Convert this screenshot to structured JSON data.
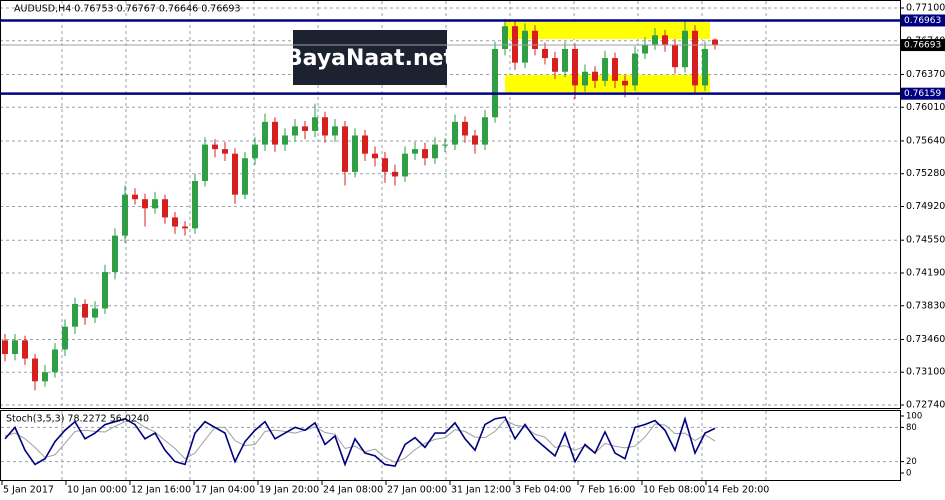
{
  "chart_data": {
    "type": "candlestick",
    "title": "AUDUSD,H4  0.76753 0.76767 0.76646 0.76693",
    "watermark": "BayaNaat.net",
    "up_color": "#2f9e44",
    "down_color": "#d62020",
    "open": [
      0.7345,
      0.733,
      0.7345,
      0.7325,
      0.73,
      0.731,
      0.7335,
      0.736,
      0.7385,
      0.737,
      0.738,
      0.742,
      0.746,
      0.7505,
      0.75,
      0.749,
      0.75,
      0.748,
      0.747,
      0.7468,
      0.752,
      0.756,
      0.7555,
      0.755,
      0.7505,
      0.7545,
      0.756,
      0.7585,
      0.756,
      0.757,
      0.758,
      0.7575,
      0.759,
      0.757,
      0.758,
      0.753,
      0.757,
      0.755,
      0.7545,
      0.753,
      0.7525,
      0.755,
      0.7555,
      0.7545,
      0.756,
      0.756,
      0.7585,
      0.757,
      0.756,
      0.759,
      0.7665,
      0.769,
      0.765,
      0.7685,
      0.7665,
      0.7655,
      0.764,
      0.7665,
      0.7625,
      0.764,
      0.763,
      0.7655,
      0.763,
      0.7625,
      0.766,
      0.767,
      0.768,
      0.767,
      0.7645,
      0.7685,
      0.7625,
      0.76753
    ],
    "high": [
      0.7352,
      0.7352,
      0.735,
      0.733,
      0.7318,
      0.7342,
      0.7368,
      0.7392,
      0.739,
      0.7388,
      0.7428,
      0.7468,
      0.7515,
      0.7512,
      0.7506,
      0.7508,
      0.7505,
      0.7486,
      0.7476,
      0.7528,
      0.7568,
      0.7566,
      0.7563,
      0.7556,
      0.7552,
      0.7568,
      0.7594,
      0.759,
      0.7578,
      0.7588,
      0.7586,
      0.7605,
      0.7596,
      0.7588,
      0.7586,
      0.7578,
      0.7576,
      0.7558,
      0.7552,
      0.7538,
      0.7558,
      0.7563,
      0.7562,
      0.7568,
      0.7567,
      0.7593,
      0.7591,
      0.7576,
      0.7598,
      0.7673,
      0.7698,
      0.7696,
      0.7693,
      0.7691,
      0.7672,
      0.7662,
      0.7673,
      0.7671,
      0.7648,
      0.7646,
      0.7663,
      0.7661,
      0.7636,
      0.7668,
      0.7678,
      0.7688,
      0.7686,
      0.7676,
      0.7696,
      0.7691,
      0.7673,
      0.76767
    ],
    "low": [
      0.7322,
      0.7323,
      0.7318,
      0.729,
      0.7294,
      0.7304,
      0.7328,
      0.7352,
      0.7362,
      0.7364,
      0.7374,
      0.7412,
      0.7452,
      0.7494,
      0.747,
      0.7484,
      0.7473,
      0.7462,
      0.746,
      0.7462,
      0.7514,
      0.7546,
      0.7542,
      0.7495,
      0.75,
      0.7538,
      0.7553,
      0.7552,
      0.7553,
      0.7563,
      0.7566,
      0.7568,
      0.7562,
      0.7563,
      0.7515,
      0.7524,
      0.7542,
      0.7536,
      0.7518,
      0.7515,
      0.7519,
      0.7543,
      0.7537,
      0.7539,
      0.7552,
      0.7554,
      0.7562,
      0.755,
      0.7554,
      0.7584,
      0.7658,
      0.7642,
      0.7644,
      0.7658,
      0.7648,
      0.7632,
      0.7634,
      0.761,
      0.7618,
      0.7622,
      0.7624,
      0.7622,
      0.7612,
      0.7619,
      0.7654,
      0.7664,
      0.7662,
      0.7638,
      0.7639,
      0.7615,
      0.7619,
      0.76646
    ],
    "close": [
      0.733,
      0.7345,
      0.7325,
      0.73,
      0.731,
      0.7335,
      0.736,
      0.7385,
      0.737,
      0.738,
      0.742,
      0.746,
      0.7505,
      0.75,
      0.749,
      0.75,
      0.748,
      0.747,
      0.7468,
      0.752,
      0.756,
      0.7555,
      0.755,
      0.7505,
      0.7545,
      0.756,
      0.7585,
      0.756,
      0.757,
      0.758,
      0.7575,
      0.759,
      0.757,
      0.758,
      0.753,
      0.757,
      0.755,
      0.7545,
      0.753,
      0.7525,
      0.755,
      0.7555,
      0.7545,
      0.756,
      0.756,
      0.7585,
      0.757,
      0.756,
      0.759,
      0.7665,
      0.769,
      0.765,
      0.7685,
      0.7665,
      0.7655,
      0.764,
      0.7665,
      0.7625,
      0.764,
      0.763,
      0.7655,
      0.763,
      0.7625,
      0.766,
      0.767,
      0.768,
      0.767,
      0.7645,
      0.7685,
      0.7625,
      0.7665,
      0.76693
    ],
    "ylim": [
      0.7274,
      0.771
    ],
    "yticks": [
      {
        "value": 0.771,
        "label": "0.77100"
      },
      {
        "value": 0.7674,
        "label": "0.76740"
      },
      {
        "value": 0.7637,
        "label": "0.76370"
      },
      {
        "value": 0.7601,
        "label": "0.76010"
      },
      {
        "value": 0.7564,
        "label": "0.75640"
      },
      {
        "value": 0.7528,
        "label": "0.75280"
      },
      {
        "value": 0.7492,
        "label": "0.74920"
      },
      {
        "value": 0.7455,
        "label": "0.74550"
      },
      {
        "value": 0.7419,
        "label": "0.74190"
      },
      {
        "value": 0.7383,
        "label": "0.73830"
      },
      {
        "value": 0.7346,
        "label": "0.73460"
      },
      {
        "value": 0.731,
        "label": "0.73100"
      },
      {
        "value": 0.7274,
        "label": "0.72740"
      }
    ],
    "grid": true,
    "levels": [
      0.76963,
      0.76159
    ],
    "level_color": "#000080",
    "x_labels": [
      "5 Jan 2017",
      "10 Jan 00:00",
      "12 Jan 16:00",
      "17 Jan 04:00",
      "19 Jan 20:00",
      "24 Jan 08:00",
      "27 Jan 00:00",
      "31 Jan 12:00",
      "3 Feb 04:00",
      "7 Feb 16:00",
      "10 Feb 08:00",
      "14 Feb 20:00"
    ],
    "indicator": {
      "type": "line",
      "title": "Stoch(3,5,3) 78.2272 56.0240",
      "ylim": [
        0,
        100
      ],
      "yticks": [
        100,
        80,
        20,
        0
      ],
      "levels": [
        80,
        20
      ],
      "series": [
        {
          "color": "#000080",
          "values": [
            60,
            80,
            40,
            15,
            25,
            55,
            75,
            90,
            60,
            70,
            85,
            90,
            95,
            85,
            60,
            70,
            40,
            20,
            15,
            70,
            90,
            80,
            70,
            20,
            55,
            75,
            90,
            60,
            70,
            80,
            75,
            88,
            50,
            65,
            15,
            60,
            35,
            30,
            15,
            12,
            50,
            62,
            45,
            70,
            70,
            88,
            60,
            40,
            85,
            95,
            98,
            60,
            85,
            60,
            45,
            30,
            70,
            20,
            50,
            35,
            72,
            35,
            25,
            80,
            85,
            92,
            75,
            40,
            95,
            35,
            70,
            78.2272
          ]
        },
        {
          "color": "#a0a0a0",
          "values": [
            65,
            70,
            60,
            45,
            27,
            32,
            52,
            73,
            75,
            73,
            72,
            82,
            90,
            92,
            80,
            72,
            57,
            43,
            25,
            35,
            58,
            80,
            80,
            57,
            48,
            50,
            73,
            75,
            73,
            70,
            75,
            81,
            71,
            68,
            43,
            47,
            37,
            42,
            27,
            19,
            26,
            41,
            52,
            59,
            62,
            76,
            73,
            63,
            62,
            73,
            93,
            84,
            81,
            68,
            63,
            45,
            48,
            40,
            47,
            35,
            52,
            47,
            44,
            47,
            63,
            86,
            84,
            69,
            70,
            57,
            67,
            56.024
          ]
        }
      ]
    }
  }
}
